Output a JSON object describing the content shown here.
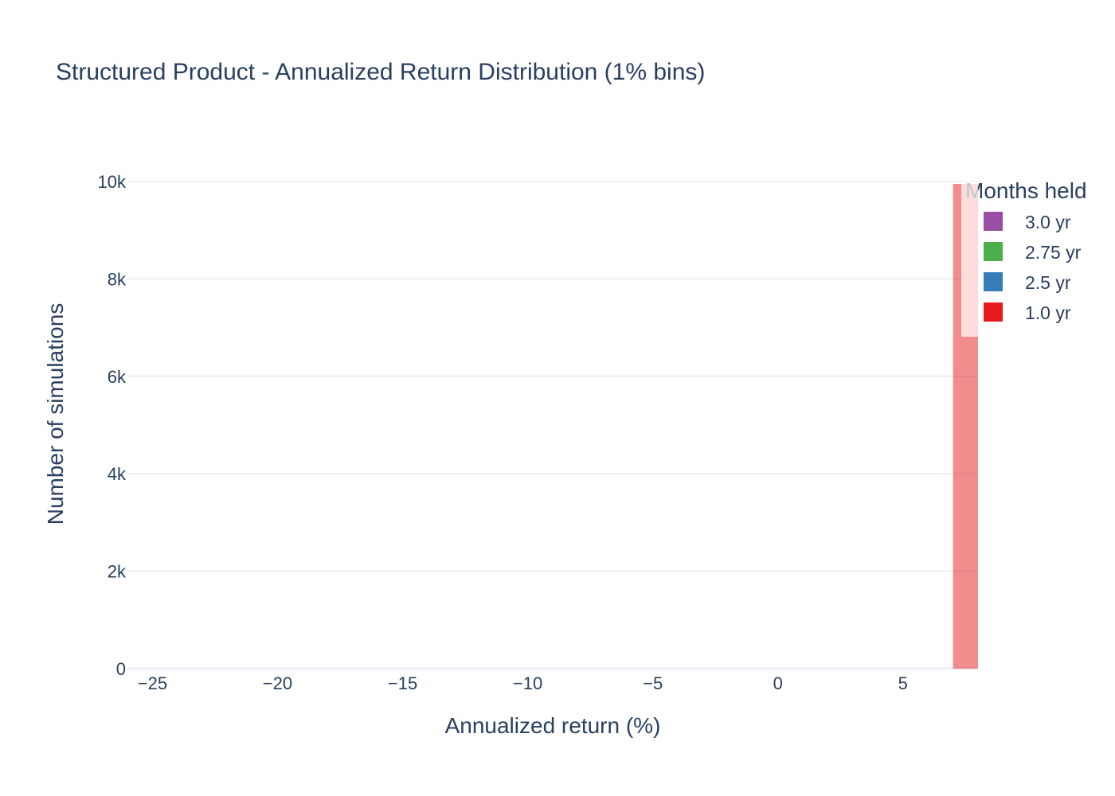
{
  "chart_data": {
    "type": "bar",
    "title": "Structured Product - Annualized Return Distribution (1% bins)",
    "xlabel": "Annualized return (%)",
    "ylabel": "Number of simulations",
    "xlim": [
      -26,
      8
    ],
    "ylim": [
      0,
      10000
    ],
    "x_ticks": [
      -25,
      -20,
      -15,
      -10,
      -5,
      0,
      5
    ],
    "x_tick_labels": [
      "−25",
      "−20",
      "−15",
      "−10",
      "−5",
      "0",
      "5"
    ],
    "y_ticks": [
      0,
      2000,
      4000,
      6000,
      8000,
      10000
    ],
    "y_tick_labels": [
      "0",
      "2k",
      "4k",
      "6k",
      "8k",
      "10k"
    ],
    "grid": true,
    "barmode": "overlay",
    "bin_width": 1,
    "legend": {
      "title": "Months held",
      "placement": "top-right"
    },
    "series": [
      {
        "name": "3.0 yr",
        "color": "#984ea3",
        "bins": []
      },
      {
        "name": "2.75 yr",
        "color": "#4daf4a",
        "bins": []
      },
      {
        "name": "2.5 yr",
        "color": "#377eb8",
        "bins": []
      },
      {
        "name": "1.0 yr",
        "color": "#e41a1c",
        "bins": [
          {
            "start": 7,
            "end": 8,
            "count": 9950
          }
        ]
      }
    ]
  }
}
